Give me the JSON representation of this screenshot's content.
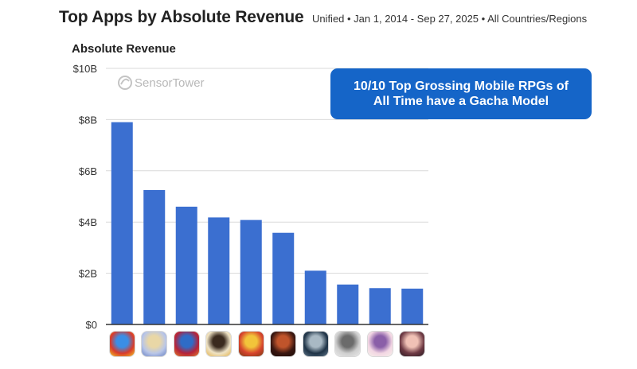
{
  "header": {
    "title": "Top Apps by Absolute Revenue",
    "subtitle": "Unified • Jan 1, 2014 - Sep 27, 2025 • All Countries/Regions"
  },
  "watermark": {
    "brand": "SensorTower",
    "icon": "sensortower-logo-icon"
  },
  "callout": {
    "line1": "10/10 Top Grossing Mobile RPGs of",
    "line2": "All Time have a Gacha Model"
  },
  "colors": {
    "bar": "#3b6fd0",
    "callout": "#1565c8",
    "grid": "#d9d9d9",
    "axis": "#333333"
  },
  "chart_data": {
    "type": "bar",
    "ylabel": "Absolute Revenue",
    "ylim": [
      0,
      10
    ],
    "yticks": [
      {
        "value": 0,
        "label": "$0"
      },
      {
        "value": 2,
        "label": "$2B"
      },
      {
        "value": 4,
        "label": "$4B"
      },
      {
        "value": 6,
        "label": "$6B"
      },
      {
        "value": 8,
        "label": "$8B"
      },
      {
        "value": 10,
        "label": "$10B"
      }
    ],
    "grid": true,
    "values": [
      7.9,
      5.25,
      4.6,
      4.18,
      4.08,
      3.58,
      2.1,
      1.56,
      1.42,
      1.4
    ],
    "category_icons": [
      "monster-strike-app-icon",
      "fate-grand-order-app-icon",
      "puzzle-and-dragons-app-icon",
      "genshin-impact-app-icon",
      "dragon-ball-z-dokkan-battle-app-icon",
      "lineage-m-app-icon",
      "honkai-star-rail-app-icon",
      "grandchase-like-app-icon",
      "anime-girl-rpg-app-icon",
      "anime-duo-rpg-app-icon"
    ]
  }
}
